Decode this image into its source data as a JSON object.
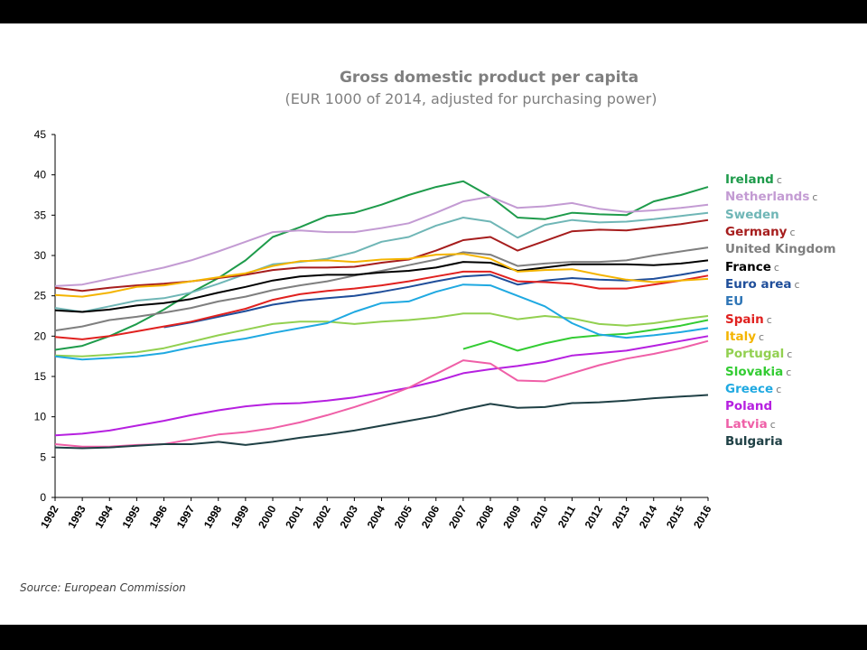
{
  "chart_data": {
    "type": "line",
    "title": "Gross domestic product per capita",
    "subtitle": "(EUR 1000 of 2014, adjusted for purchasing power)",
    "xlabel": "",
    "ylabel": "",
    "x": [
      1992,
      1993,
      1994,
      1995,
      1996,
      1997,
      1998,
      1999,
      2000,
      2001,
      2002,
      2003,
      2004,
      2005,
      2006,
      2007,
      2008,
      2009,
      2010,
      2011,
      2012,
      2013,
      2014,
      2015,
      2016
    ],
    "x_tick_labels": [
      "1992",
      "1993",
      "1994",
      "1995",
      "1996",
      "1997",
      "1998",
      "1999",
      "2000",
      "2001",
      "2002",
      "2003",
      "2004",
      "2005",
      "2006",
      "2007",
      "2008",
      "2009",
      "2010",
      "2011",
      "2012",
      "2013",
      "2014",
      "2015",
      "2016"
    ],
    "ylim": [
      0,
      45
    ],
    "y_ticks": [
      0,
      5,
      10,
      15,
      20,
      25,
      30,
      35,
      40,
      45
    ],
    "y_tick_labels": [
      "0",
      "5",
      "10",
      "15",
      "20",
      "25",
      "30",
      "35",
      "40",
      "45"
    ],
    "grid": false,
    "legend_position": "right",
    "series": [
      {
        "name": "Ireland",
        "marker": "c",
        "color": "#1e9b4b",
        "values": [
          18.3,
          18.8,
          20.0,
          21.5,
          23.3,
          25.4,
          27.2,
          29.4,
          32.3,
          33.5,
          34.9,
          35.3,
          36.3,
          37.5,
          38.5,
          39.2,
          37.3,
          34.7,
          34.5,
          35.3,
          35.1,
          35.0,
          36.7,
          37.5,
          38.5
        ]
      },
      {
        "name": "Netherlands",
        "marker": "c",
        "color": "#c39bd3",
        "values": [
          26.2,
          26.4,
          27.1,
          27.8,
          28.5,
          29.4,
          30.5,
          31.7,
          32.9,
          33.1,
          32.9,
          32.9,
          33.4,
          34.0,
          35.3,
          36.7,
          37.3,
          35.9,
          36.1,
          36.5,
          35.8,
          35.4,
          35.6,
          35.9,
          36.3
        ]
      },
      {
        "name": "Sweden",
        "marker": "",
        "color": "#6fb6b6",
        "values": [
          23.5,
          23.0,
          23.7,
          24.4,
          24.7,
          25.4,
          26.5,
          27.7,
          28.9,
          29.2,
          29.6,
          30.4,
          31.7,
          32.3,
          33.7,
          34.7,
          34.2,
          32.2,
          33.8,
          34.4,
          34.1,
          34.2,
          34.5,
          34.9,
          35.3
        ]
      },
      {
        "name": "Germany",
        "marker": "c",
        "color": "#a61d1d",
        "values": [
          26.0,
          25.6,
          26.0,
          26.3,
          26.5,
          26.8,
          27.2,
          27.6,
          28.2,
          28.5,
          28.5,
          28.6,
          29.1,
          29.5,
          30.6,
          31.9,
          32.3,
          30.6,
          31.8,
          33.0,
          33.2,
          33.1,
          33.5,
          33.9,
          34.4
        ]
      },
      {
        "name": "United Kingdom",
        "marker": "",
        "color": "#7f7f7f",
        "values": [
          20.7,
          21.2,
          22.0,
          22.4,
          22.9,
          23.5,
          24.3,
          24.9,
          25.7,
          26.3,
          26.8,
          27.5,
          28.1,
          28.8,
          29.5,
          30.4,
          30.1,
          28.7,
          29.0,
          29.2,
          29.2,
          29.4,
          30.0,
          30.5,
          31.0
        ]
      },
      {
        "name": "France",
        "marker": "c",
        "color": "#000000",
        "values": [
          23.2,
          23.0,
          23.3,
          23.8,
          24.1,
          24.6,
          25.4,
          26.1,
          26.9,
          27.4,
          27.6,
          27.6,
          27.9,
          28.1,
          28.5,
          29.2,
          29.1,
          28.1,
          28.5,
          28.9,
          28.9,
          28.9,
          28.8,
          29.0,
          29.4
        ]
      },
      {
        "name": "Euro area",
        "marker": "c",
        "color": "#1f4e9a",
        "values": [
          null,
          null,
          null,
          null,
          21.1,
          21.7,
          22.4,
          23.1,
          23.9,
          24.4,
          24.7,
          25.0,
          25.5,
          26.1,
          26.8,
          27.4,
          27.6,
          26.4,
          26.9,
          27.2,
          27.0,
          26.9,
          27.1,
          27.6,
          28.2
        ]
      },
      {
        "name": "EU",
        "marker": "",
        "color": "#2e75b6",
        "values": [
          null,
          null,
          null,
          null,
          null,
          null,
          null,
          null,
          null,
          null,
          null,
          null,
          null,
          null,
          null,
          null,
          null,
          null,
          null,
          null,
          null,
          null,
          null,
          null,
          null
        ]
      },
      {
        "name": "Spain",
        "marker": "c",
        "color": "#e0211f",
        "values": [
          19.9,
          19.6,
          20.0,
          20.6,
          21.2,
          21.8,
          22.6,
          23.4,
          24.5,
          25.2,
          25.6,
          25.9,
          26.3,
          26.8,
          27.4,
          28.0,
          28.0,
          26.8,
          26.7,
          26.5,
          25.9,
          25.9,
          26.4,
          26.9,
          27.5
        ]
      },
      {
        "name": "Italy",
        "marker": "c",
        "color": "#f4b400",
        "values": [
          25.1,
          24.9,
          25.4,
          26.1,
          26.3,
          26.8,
          27.3,
          27.8,
          28.7,
          29.3,
          29.4,
          29.2,
          29.5,
          29.6,
          30.1,
          30.2,
          29.6,
          28.0,
          28.2,
          28.3,
          27.6,
          27.0,
          26.7,
          26.9,
          27.1
        ]
      },
      {
        "name": "Portugal",
        "marker": "c",
        "color": "#92d050",
        "values": [
          17.6,
          17.5,
          17.7,
          18.0,
          18.5,
          19.3,
          20.1,
          20.8,
          21.5,
          21.8,
          21.8,
          21.5,
          21.8,
          22.0,
          22.3,
          22.8,
          22.8,
          22.1,
          22.5,
          22.2,
          21.5,
          21.3,
          21.6,
          22.1,
          22.5
        ]
      },
      {
        "name": "Slovakia",
        "marker": "c",
        "color": "#33cc33",
        "values": [
          null,
          null,
          null,
          null,
          null,
          null,
          null,
          null,
          null,
          null,
          null,
          null,
          null,
          null,
          null,
          18.4,
          19.4,
          18.2,
          19.1,
          19.8,
          20.1,
          20.3,
          20.8,
          21.3,
          22.0
        ]
      },
      {
        "name": "Greece",
        "marker": "c",
        "color": "#1fa9e1",
        "values": [
          17.5,
          17.1,
          17.3,
          17.5,
          17.9,
          18.6,
          19.2,
          19.7,
          20.4,
          21.0,
          21.6,
          23.0,
          24.1,
          24.3,
          25.5,
          26.4,
          26.3,
          25.0,
          23.7,
          21.6,
          20.2,
          19.8,
          20.1,
          20.5,
          21.0
        ]
      },
      {
        "name": "Poland",
        "marker": "",
        "color": "#b620e0",
        "values": [
          7.7,
          7.9,
          8.3,
          8.9,
          9.5,
          10.2,
          10.8,
          11.3,
          11.6,
          11.7,
          12.0,
          12.4,
          13.0,
          13.6,
          14.4,
          15.4,
          15.9,
          16.3,
          16.8,
          17.6,
          17.9,
          18.2,
          18.8,
          19.4,
          20.0
        ]
      },
      {
        "name": "Latvia",
        "marker": "c",
        "color": "#ef5fa7",
        "values": [
          6.6,
          6.3,
          6.3,
          6.5,
          6.6,
          7.2,
          7.8,
          8.1,
          8.6,
          9.3,
          10.2,
          11.2,
          12.3,
          13.6,
          15.3,
          17.0,
          16.6,
          14.5,
          14.4,
          15.4,
          16.4,
          17.2,
          17.8,
          18.5,
          19.4
        ]
      },
      {
        "name": "Bulgaria",
        "marker": "",
        "color": "#1f4045",
        "values": [
          6.2,
          6.1,
          6.2,
          6.4,
          6.6,
          6.6,
          6.9,
          6.5,
          6.9,
          7.4,
          7.8,
          8.3,
          8.9,
          9.5,
          10.1,
          10.9,
          11.6,
          11.1,
          11.2,
          11.7,
          11.8,
          12.0,
          12.3,
          12.5,
          12.7
        ]
      }
    ]
  },
  "source_note": "Source: European Commission"
}
